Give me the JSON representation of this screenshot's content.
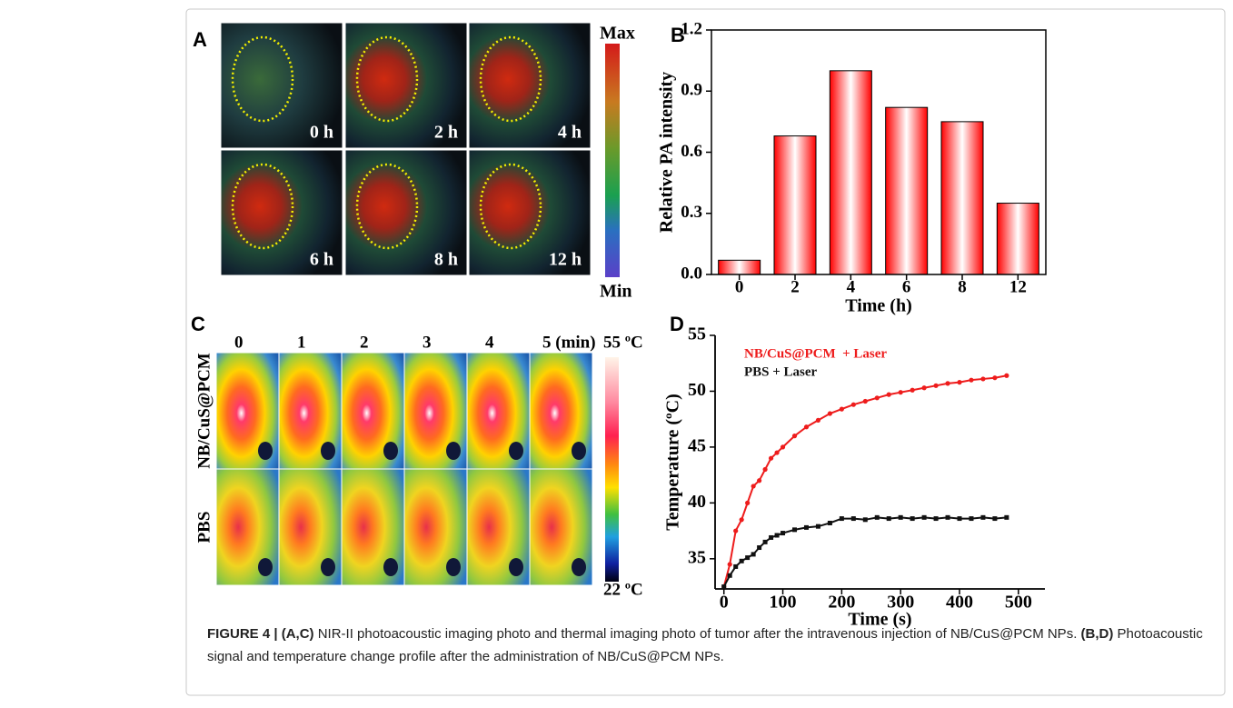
{
  "panel_a": {
    "label": "A",
    "times": [
      "0 h",
      "2 h",
      "4 h",
      "6 h",
      "8 h",
      "12 h"
    ],
    "scale_max": "Max",
    "scale_min": "Min"
  },
  "panel_c": {
    "label": "C",
    "times": [
      "0",
      "1",
      "2",
      "3",
      "4",
      "5 (min)"
    ],
    "rows": [
      "NB/CuS@PCM",
      "PBS"
    ],
    "scale_max": "55 ºC",
    "scale_min": "22 ºC"
  },
  "chart_data": [
    {
      "type": "bar",
      "panel_label": "B",
      "categories": [
        "0",
        "2",
        "4",
        "6",
        "8",
        "12"
      ],
      "values": [
        0.07,
        0.68,
        1.0,
        0.82,
        0.75,
        0.35
      ],
      "color": "#ff0000",
      "ylim": [
        0,
        1.2
      ],
      "yticks": [
        {
          "value": 0,
          "label": "0.0"
        },
        0.3,
        0.6,
        0.9,
        1.2
      ],
      "x_label": "Time (h)",
      "y_label": "Relative PA intensity"
    },
    {
      "type": "line",
      "panel_label": "D",
      "x": [
        0,
        10,
        20,
        30,
        40,
        50,
        60,
        70,
        80,
        90,
        100,
        120,
        140,
        160,
        180,
        200,
        220,
        240,
        260,
        280,
        300,
        320,
        340,
        360,
        380,
        400,
        420,
        440,
        460,
        480
      ],
      "series": [
        {
          "name": "NB/CuS@PCM  + Laser",
          "color": "#ee1c1c",
          "marker": "circle",
          "values": [
            32.5,
            34.5,
            37.5,
            38.5,
            40.0,
            41.5,
            42.0,
            43.0,
            44.0,
            44.5,
            45.0,
            46.0,
            46.8,
            47.4,
            48.0,
            48.4,
            48.8,
            49.1,
            49.4,
            49.7,
            49.9,
            50.1,
            50.3,
            50.5,
            50.7,
            50.8,
            51.0,
            51.1,
            51.2,
            51.4
          ]
        },
        {
          "name": "PBS + Laser",
          "color": "#111111",
          "marker": "square",
          "values": [
            32.5,
            33.5,
            34.3,
            34.8,
            35.1,
            35.4,
            36.0,
            36.5,
            36.9,
            37.1,
            37.3,
            37.6,
            37.8,
            37.9,
            38.2,
            38.6,
            38.6,
            38.5,
            38.7,
            38.6,
            38.7,
            38.6,
            38.7,
            38.6,
            38.7,
            38.6,
            38.6,
            38.7,
            38.6,
            38.7
          ]
        }
      ],
      "xlim": [
        -15,
        545
      ],
      "xticks": [
        0,
        100,
        200,
        300,
        400,
        500
      ],
      "ylim": [
        32.3,
        55
      ],
      "yticks": [
        35,
        40,
        45,
        50,
        55
      ],
      "x_label": "Time (s)",
      "y_label": "Temperature (ºC)",
      "legend": "upper left"
    }
  ],
  "caption": [
    {
      "text": "FIGURE 4 | (A,C)",
      "bold": true
    },
    {
      "text": " NIR-II photoacoustic imaging photo and thermal imaging photo of tumor after the intravenous injection of NB/CuS@PCM NPs. ",
      "bold": false
    },
    {
      "text": "(B,D)",
      "bold": true
    },
    {
      "text": " Photoacoustic signal and temperature change profile after the administration of NB/CuS@PCM NPs.",
      "bold": false
    }
  ]
}
